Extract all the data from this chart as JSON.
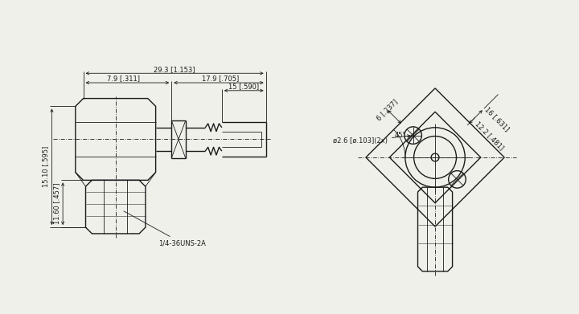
{
  "bg_color": "#f0f0eb",
  "line_color": "#1a1a1a",
  "lw": 1.0,
  "thin_lw": 0.6,
  "dlw": 0.6,
  "fs": 6.0,
  "left_view": {
    "dim_29_3": "29.3 [1.153]",
    "dim_7_9": "7.9 [.311]",
    "dim_17_9": "17.9 [.705]",
    "dim_15": "15 [.590]",
    "dim_15_10": "15.10 [.595]",
    "dim_11_60": "11.60 [.457]",
    "thread_label": "1/4-36UNS-2A"
  },
  "right_view": {
    "dim_45": "45°",
    "dim_6": "6 [.237]",
    "dim_16": "16 [.631]",
    "dim_12_2": "12.2 [.481]",
    "dim_hole": "ø2.6 [ø.103](2x)"
  }
}
